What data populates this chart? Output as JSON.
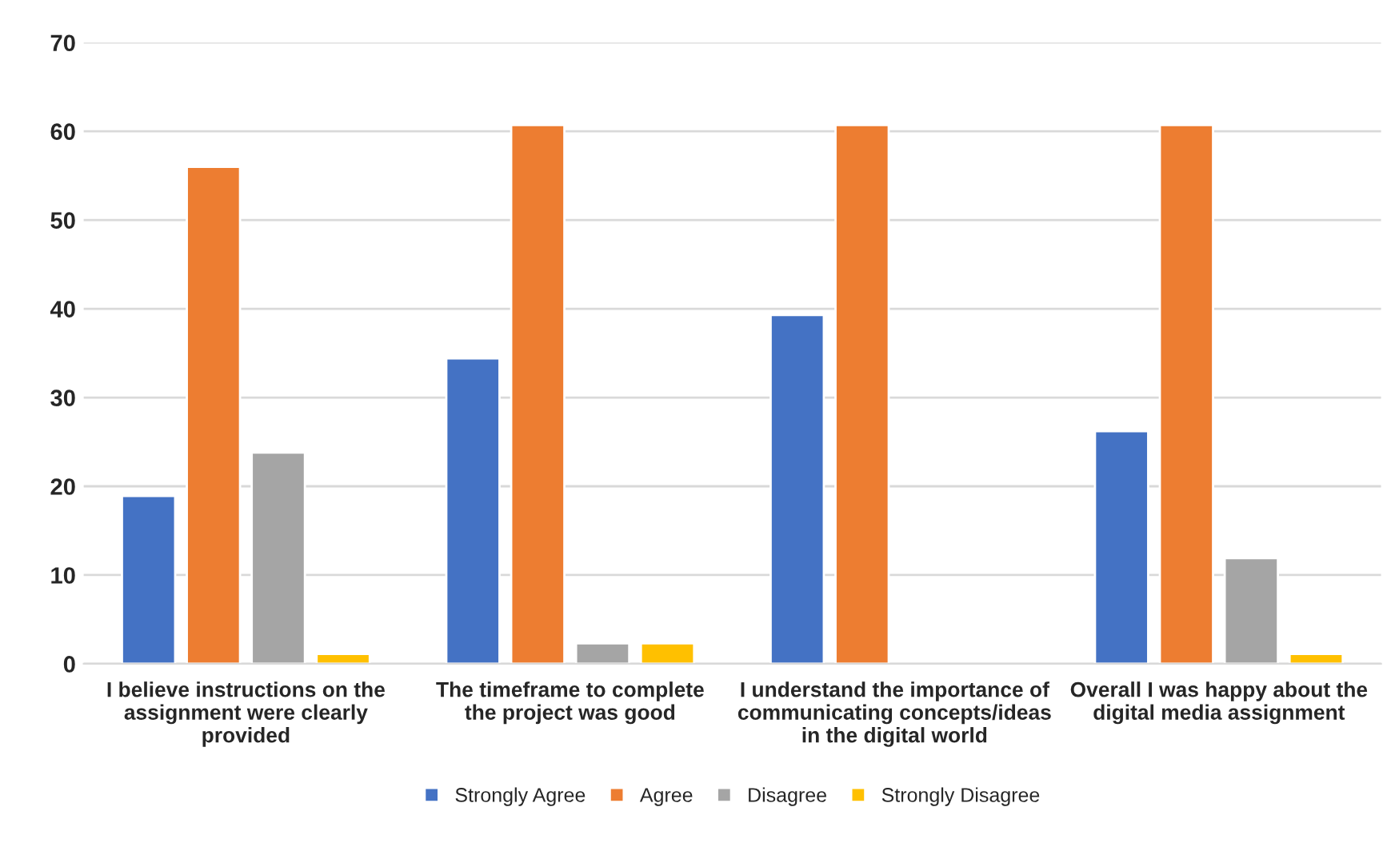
{
  "chart_data": {
    "type": "bar",
    "categories": [
      "I believe instructions on the\nassignment were clearly\nprovided",
      "The timeframe to complete\nthe project was good",
      "I understand the importance of\ncommunicating concepts/ideas\nin the digital world",
      "Overall I was happy about the\ndigital media assignment"
    ],
    "series": [
      {
        "name": "Strongly Agree",
        "color": "#4472c4",
        "values": [
          18.9,
          34.4,
          39.3,
          26.2
        ]
      },
      {
        "name": "Agree",
        "color": "#ed7d31",
        "values": [
          56.0,
          60.7,
          60.7,
          60.7
        ]
      },
      {
        "name": "Disagree",
        "color": "#a5a5a5",
        "values": [
          23.8,
          2.3,
          null,
          11.9
        ]
      },
      {
        "name": "Strongly Disagree",
        "color": "#ffc000",
        "values": [
          1.1,
          2.3,
          null,
          1.1
        ]
      }
    ],
    "ylim": [
      0,
      70
    ],
    "yticks": [
      0,
      10,
      20,
      30,
      40,
      50,
      60,
      70
    ],
    "grid": "y",
    "legend": "bottom"
  }
}
